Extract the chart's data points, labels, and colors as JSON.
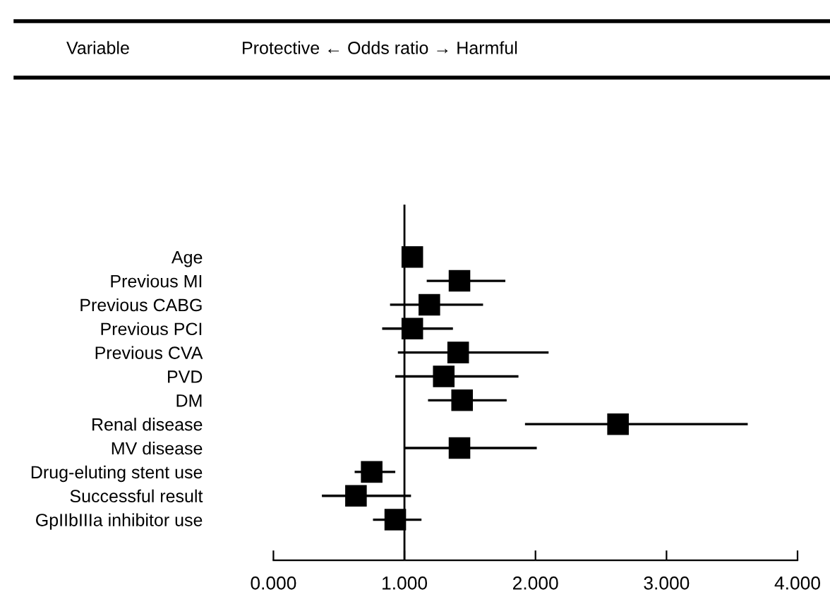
{
  "chart_data": {
    "type": "scatter",
    "orientation": "horizontal",
    "annotations": [
      "Variable",
      "Protective ← Odds ratio → Harmful"
    ],
    "categories": [
      "Age",
      "Previous MI",
      "Previous CABG",
      "Previous PCI",
      "Previous CVA",
      "PVD",
      "DM",
      "Renal disease",
      "MV disease",
      "Drug-eluting stent use",
      "Successful result",
      "GpIIbIIIa inhibitor use"
    ],
    "series": [
      {
        "color": "#000000",
        "values": [
          1.06,
          1.42,
          1.19,
          1.06,
          1.41,
          1.3,
          1.44,
          2.63,
          1.42,
          0.75,
          0.63,
          0.93
        ],
        "errors": [
          null,
          [
            1.17,
            1.77
          ],
          [
            0.89,
            1.6
          ],
          [
            0.83,
            1.37
          ],
          [
            0.95,
            2.1
          ],
          [
            0.93,
            1.87
          ],
          [
            1.18,
            1.78
          ],
          [
            1.92,
            3.62
          ],
          [
            1.0,
            2.01
          ],
          [
            0.62,
            0.93
          ],
          [
            0.37,
            1.05
          ],
          [
            0.76,
            1.13
          ]
        ]
      }
    ],
    "marker": "square",
    "xlim": [
      0,
      4
    ],
    "xticks": [
      {
        "value": 0,
        "label": "0.000"
      },
      {
        "value": 1,
        "label": "1.000"
      },
      {
        "value": 2,
        "label": "2.000"
      },
      {
        "value": 3,
        "label": "3.000"
      },
      {
        "value": 4,
        "label": "4.000"
      }
    ],
    "ref_lines": [
      {
        "axis": "x",
        "value": 1,
        "color": "#000000"
      }
    ],
    "grid": false
  }
}
